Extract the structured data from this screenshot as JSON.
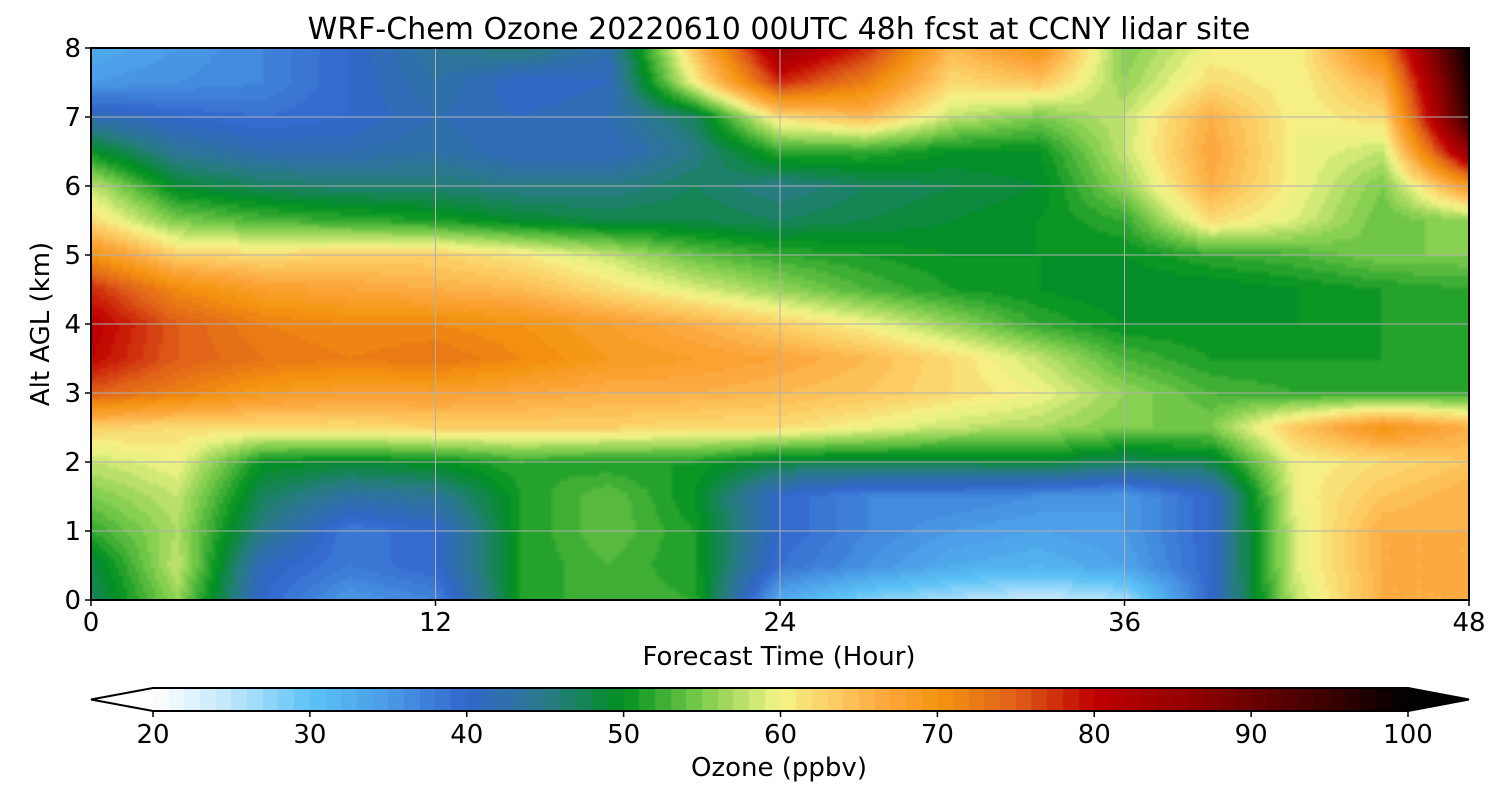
{
  "chart_data": {
    "type": "heatmap",
    "title": "WRF-Chem Ozone  20220610 00UTC 48h fcst at CCNY lidar site",
    "xlabel": "Forecast Time (Hour)",
    "ylabel": "Alt AGL (km)",
    "xlim": [
      0,
      48
    ],
    "ylim": [
      0,
      8
    ],
    "xticks": [
      0,
      12,
      24,
      36,
      48
    ],
    "yticks": [
      0,
      1,
      2,
      3,
      4,
      5,
      6,
      7,
      8
    ],
    "grid": true,
    "colorbar": {
      "label": "Ozone  (ppbv)",
      "min": 20,
      "max": 100,
      "ticks": [
        20,
        30,
        40,
        50,
        60,
        70,
        80,
        90,
        100
      ],
      "extend": "both",
      "colors": [
        [
          20,
          "#ffffff"
        ],
        [
          25,
          "#bfe6fb"
        ],
        [
          30,
          "#5cc3f7"
        ],
        [
          35,
          "#4a9be6"
        ],
        [
          40,
          "#3366cc"
        ],
        [
          45,
          "#2a7a8a"
        ],
        [
          50,
          "#00901e"
        ],
        [
          55,
          "#7ccc4c"
        ],
        [
          60,
          "#f5f588"
        ],
        [
          63,
          "#fcd068"
        ],
        [
          67,
          "#fca53a"
        ],
        [
          70,
          "#f59510"
        ],
        [
          75,
          "#e0601a"
        ],
        [
          80,
          "#c00000"
        ],
        [
          87,
          "#8a0000"
        ],
        [
          95,
          "#3a0000"
        ],
        [
          100,
          "#000000"
        ]
      ]
    },
    "heights_km": [
      0,
      0.5,
      1,
      1.5,
      2,
      2.5,
      3,
      3.5,
      4,
      4.5,
      5,
      5.5,
      6,
      6.5,
      7,
      7.5,
      8
    ],
    "times_h": [
      0,
      3,
      6,
      9,
      12,
      15,
      18,
      21,
      24,
      27,
      30,
      33,
      36,
      39,
      42,
      45,
      48
    ],
    "values_ppbv": [
      [
        47,
        56,
        40,
        35,
        37,
        51,
        53,
        52,
        33,
        28,
        26,
        24,
        26,
        40,
        58,
        66,
        66
      ],
      [
        48,
        58,
        41,
        38,
        40,
        51,
        53,
        51,
        39,
        36,
        33,
        32,
        34,
        40,
        59,
        66,
        66
      ],
      [
        52,
        57,
        45,
        38,
        40,
        51,
        54,
        51,
        40,
        37,
        35,
        34,
        35,
        40,
        59,
        66,
        66
      ],
      [
        55,
        58,
        47,
        43,
        44,
        51,
        54,
        50,
        40,
        37,
        37,
        36,
        35,
        40,
        60,
        64,
        66
      ],
      [
        58,
        60,
        50,
        49,
        50,
        52,
        51,
        51,
        48,
        48,
        48,
        49,
        47,
        48,
        60,
        62,
        64
      ],
      [
        63,
        62,
        62,
        62,
        63,
        63,
        63,
        62,
        62,
        60,
        58,
        57,
        55,
        55,
        64,
        70,
        66
      ],
      [
        75,
        72,
        69,
        68,
        68,
        67,
        66,
        66,
        65,
        64,
        62,
        60,
        56,
        53,
        52,
        52,
        52
      ],
      [
        80,
        75,
        73,
        72,
        73,
        71,
        69,
        68,
        67,
        65,
        62,
        58,
        53,
        51,
        51,
        51,
        51
      ],
      [
        81,
        75,
        72,
        71,
        71,
        70,
        68,
        66,
        63,
        60,
        56,
        52,
        50,
        50,
        50,
        51,
        52
      ],
      [
        78,
        71,
        68,
        67,
        66,
        65,
        62,
        59,
        56,
        53,
        51,
        50,
        49,
        49,
        50,
        51,
        52
      ],
      [
        70,
        63,
        62,
        63,
        63,
        61,
        58,
        54,
        52,
        51,
        50,
        50,
        50,
        52,
        53,
        55,
        55
      ],
      [
        62,
        55,
        53,
        52,
        51,
        49,
        48,
        48,
        47,
        48,
        49,
        50,
        52,
        62,
        59,
        54,
        56
      ],
      [
        58,
        49,
        47,
        46,
        46,
        45,
        45,
        47,
        45,
        47,
        48,
        49,
        56,
        66,
        60,
        55,
        69
      ],
      [
        50,
        44,
        42,
        42,
        43,
        41,
        41,
        45,
        52,
        52,
        50,
        50,
        58,
        67,
        60,
        58,
        86
      ],
      [
        42,
        40,
        39,
        40,
        42,
        41,
        42,
        47,
        62,
        65,
        58,
        55,
        58,
        66,
        60,
        62,
        96
      ],
      [
        35,
        36,
        37,
        40,
        43,
        40,
        41,
        60,
        78,
        72,
        62,
        64,
        56,
        62,
        60,
        66,
        98
      ],
      [
        33,
        35,
        37,
        40,
        44,
        46,
        42,
        64,
        85,
        78,
        65,
        70,
        55,
        60,
        60,
        72,
        100
      ]
    ]
  }
}
